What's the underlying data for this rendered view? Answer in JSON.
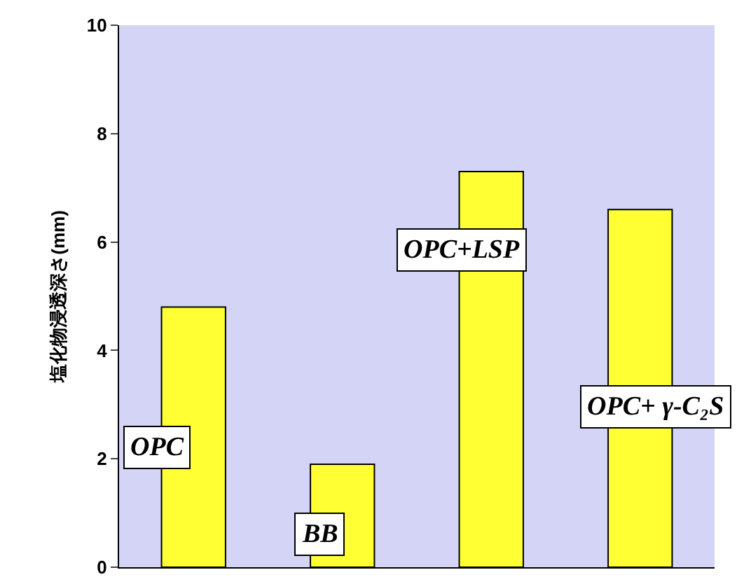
{
  "chart_data": {
    "type": "bar",
    "ylabel": "塩化物浸透深さ(mm)",
    "categories": [
      "OPC",
      "BB",
      "OPC+LSP",
      "OPC+ γ-C₂S"
    ],
    "values": [
      4.8,
      1.9,
      7.3,
      6.6
    ],
    "color": "#ffff33",
    "ylim": [
      0,
      10
    ],
    "yticks": [
      0,
      2,
      4,
      6,
      8,
      10
    ],
    "tick_labels": "y"
  }
}
